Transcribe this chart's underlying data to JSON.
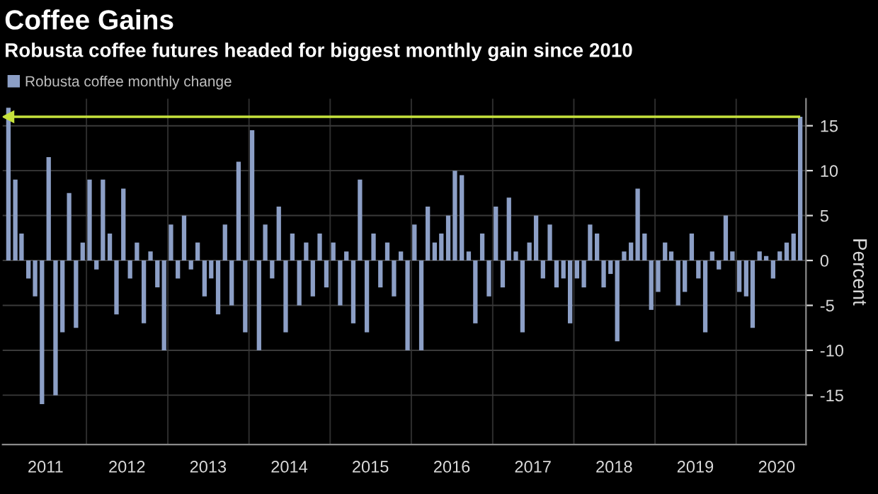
{
  "chart_data": {
    "type": "bar",
    "title": "Coffee Gains",
    "subtitle": "Robusta coffee futures headed for biggest monthly gain since 2010",
    "ylabel": "Percent",
    "x": [
      "2011-01",
      "2011-02",
      "2011-03",
      "2011-04",
      "2011-05",
      "2011-06",
      "2011-07",
      "2011-08",
      "2011-09",
      "2011-10",
      "2011-11",
      "2011-12",
      "2012-01",
      "2012-02",
      "2012-03",
      "2012-04",
      "2012-05",
      "2012-06",
      "2012-07",
      "2012-08",
      "2012-09",
      "2012-10",
      "2012-11",
      "2012-12",
      "2013-01",
      "2013-02",
      "2013-03",
      "2013-04",
      "2013-05",
      "2013-06",
      "2013-07",
      "2013-08",
      "2013-09",
      "2013-10",
      "2013-11",
      "2013-12",
      "2014-01",
      "2014-02",
      "2014-03",
      "2014-04",
      "2014-05",
      "2014-06",
      "2014-07",
      "2014-08",
      "2014-09",
      "2014-10",
      "2014-11",
      "2014-12",
      "2015-01",
      "2015-02",
      "2015-03",
      "2015-04",
      "2015-05",
      "2015-06",
      "2015-07",
      "2015-08",
      "2015-09",
      "2015-10",
      "2015-11",
      "2015-12",
      "2016-01",
      "2016-02",
      "2016-03",
      "2016-04",
      "2016-05",
      "2016-06",
      "2016-07",
      "2016-08",
      "2016-09",
      "2016-10",
      "2016-11",
      "2016-12",
      "2017-01",
      "2017-02",
      "2017-03",
      "2017-04",
      "2017-05",
      "2017-06",
      "2017-07",
      "2017-08",
      "2017-09",
      "2017-10",
      "2017-11",
      "2017-12",
      "2018-01",
      "2018-02",
      "2018-03",
      "2018-04",
      "2018-05",
      "2018-06",
      "2018-07",
      "2018-08",
      "2018-09",
      "2018-10",
      "2018-11",
      "2018-12",
      "2019-01",
      "2019-02",
      "2019-03",
      "2019-04",
      "2019-05",
      "2019-06",
      "2019-07",
      "2019-08",
      "2019-09",
      "2019-10",
      "2019-11",
      "2019-12",
      "2020-01",
      "2020-02",
      "2020-03",
      "2020-04",
      "2020-05",
      "2020-06",
      "2020-07",
      "2020-08",
      "2020-09",
      "2020-10"
    ],
    "series": [
      {
        "name": "Robusta coffee monthly change",
        "color": "#8c9fc6",
        "values": [
          17,
          9,
          3,
          -2,
          -4,
          -16,
          11.5,
          -15,
          -8,
          7.5,
          -7.5,
          2,
          9,
          -1,
          9,
          3,
          -6,
          8,
          -2,
          2,
          -7,
          1,
          -3,
          -10,
          4,
          -2,
          5,
          -1,
          2,
          -4,
          -2,
          -6,
          4,
          -5,
          11,
          -8,
          14.5,
          -10,
          4,
          -2,
          6,
          -8,
          3,
          -5,
          2,
          -4,
          3,
          -3,
          2,
          -5,
          1,
          -7,
          9,
          -8,
          3,
          -3,
          2,
          -4,
          1,
          -10,
          4,
          -10,
          6,
          2,
          3,
          5,
          10,
          9.5,
          1,
          -7,
          3,
          -4,
          6,
          -3,
          7,
          1,
          -8,
          2,
          5,
          -2,
          4,
          -3,
          -2,
          -7,
          -2,
          -3,
          4,
          3,
          -3,
          -1.5,
          -9,
          1,
          2,
          8,
          3,
          -5.5,
          -3.5,
          2,
          1,
          -5,
          -3.5,
          3,
          -2,
          -8,
          1,
          -1,
          5,
          1,
          -3.5,
          -4,
          -7.5,
          1,
          0.5,
          -2,
          1,
          2,
          3,
          16
        ]
      }
    ],
    "xlim": [
      "2010-12-20",
      "2020-11-10"
    ],
    "xticks": [
      {
        "value": "2011-07-01",
        "label": "2011"
      },
      {
        "value": "2012-01-01",
        "label": null
      },
      {
        "value": "2012-07-01",
        "label": "2012"
      },
      {
        "value": "2013-01-01",
        "label": null
      },
      {
        "value": "2013-07-01",
        "label": "2013"
      },
      {
        "value": "2014-01-01",
        "label": null
      },
      {
        "value": "2014-07-01",
        "label": "2014"
      },
      {
        "value": "2015-01-01",
        "label": null
      },
      {
        "value": "2015-07-01",
        "label": "2015"
      },
      {
        "value": "2016-01-01",
        "label": null
      },
      {
        "value": "2016-07-01",
        "label": "2016"
      },
      {
        "value": "2017-01-01",
        "label": null
      },
      {
        "value": "2017-07-01",
        "label": "2017"
      },
      {
        "value": "2018-01-01",
        "label": null
      },
      {
        "value": "2018-07-01",
        "label": "2018"
      },
      {
        "value": "2019-01-01",
        "label": null
      },
      {
        "value": "2019-07-01",
        "label": "2019"
      },
      {
        "value": "2020-01-01",
        "label": null
      },
      {
        "value": "2020-07-01",
        "label": "2020"
      }
    ],
    "ylim": [
      -20.5,
      18
    ],
    "yticks": [
      -15,
      -10,
      -5,
      0,
      5,
      10,
      15
    ],
    "ref_lines": [
      {
        "axis": "y",
        "value": 16,
        "label": null,
        "color": "#c6e23c"
      }
    ],
    "grid": true,
    "legend": "top left"
  }
}
